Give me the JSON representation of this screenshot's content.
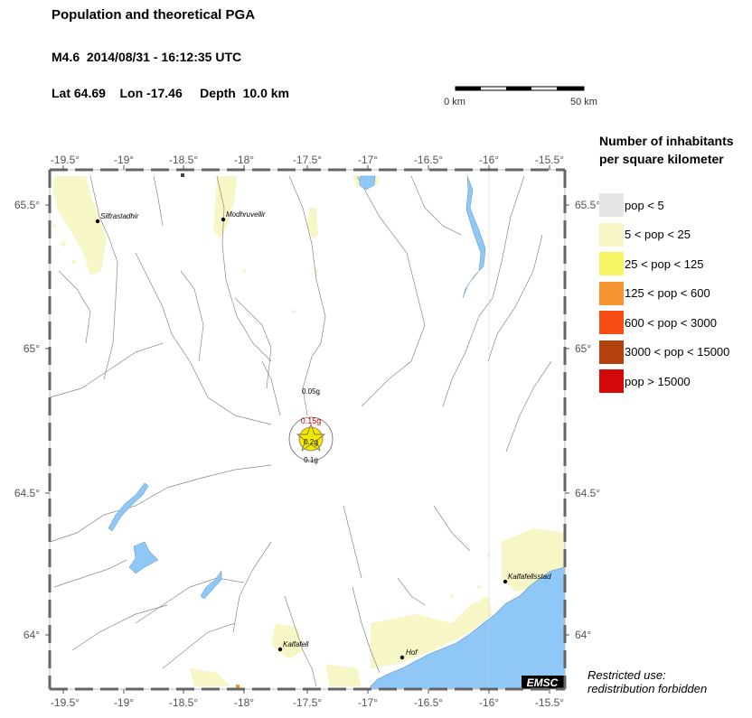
{
  "header": {
    "title": "Population and theoretical PGA",
    "event_line": "M4.6  2014/08/31 - 16:12:35 UTC",
    "location_line": "Lat 64.69    Lon -17.46     Depth  10.0 km"
  },
  "scale_bar": {
    "start_label": "0 km",
    "end_label": "50 km"
  },
  "map": {
    "lon_labels": [
      "-19.5°",
      "-19°",
      "-18.5°",
      "-18°",
      "-17.5°",
      "-17°",
      "-16.5°",
      "-16°",
      "-15.5°"
    ],
    "lat_labels": [
      "65.5°",
      "65°",
      "64.5°",
      "64°"
    ],
    "towns": [
      "Silfrastadhir",
      "Modhruvellir",
      "Kalfafell",
      "Hof",
      "Kalfafellsstad"
    ],
    "pga_labels": [
      "0.05g",
      "0.15g",
      "0.2g",
      "0.1g"
    ],
    "epicenter_color": "#f5e800",
    "water_color": "#8fc8f6",
    "logo_text": "EMSC"
  },
  "legend": {
    "title_line1": "Number of inhabitants",
    "title_line2": "per square kilometer",
    "items": [
      {
        "label": "pop < 5",
        "color": "#e4e6e4"
      },
      {
        "label": "5 < pop < 25",
        "color": "#f7f6c6"
      },
      {
        "label": "25 < pop < 125",
        "color": "#f6f665"
      },
      {
        "label": "125 < pop < 600",
        "color": "#f69632"
      },
      {
        "label": "600 < pop < 3000",
        "color": "#f64e14"
      },
      {
        "label": "3000 < pop < 15000",
        "color": "#b4420f"
      },
      {
        "label": "pop > 15000",
        "color": "#d40a0a"
      }
    ]
  },
  "footer": {
    "restricted_line1": "Restricted use:",
    "restricted_line2": "redistribution forbidden"
  }
}
